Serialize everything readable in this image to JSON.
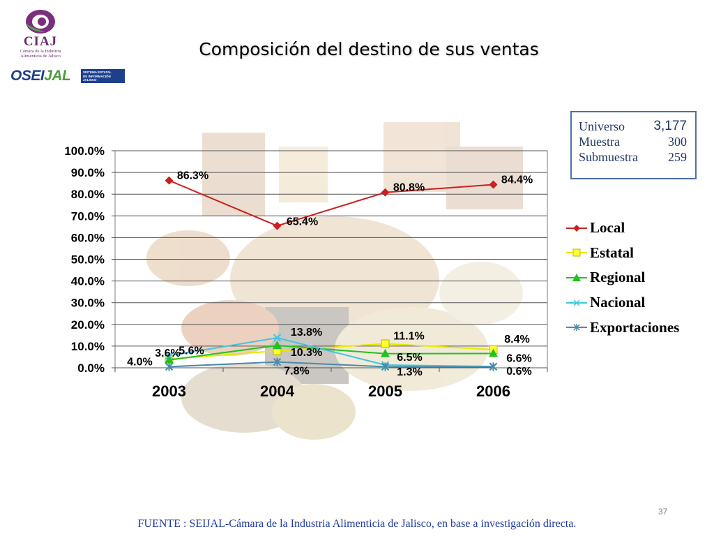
{
  "logos": {
    "ciaj_name": "CIAJ",
    "ciaj_subtitle_1": "Cámara de la Industria",
    "ciaj_subtitle_2": "Alimenticia de Jalisco",
    "oseijal_head": "OSEI",
    "oseijal_tail": "JAL",
    "oseijal_box_1": "SISTEMA ESTATAL",
    "oseijal_box_2": "DE INFORMACIÓN",
    "oseijal_box_3": "JALISCO"
  },
  "title": "Composición del destino de sus ventas",
  "universe_box": {
    "rows": [
      {
        "label": "Universo",
        "value": "3,177"
      },
      {
        "label": "Muestra",
        "value": "300"
      },
      {
        "label": "Submuestra",
        "value": "259"
      }
    ]
  },
  "chart_data": {
    "type": "line",
    "categories": [
      "2003",
      "2004",
      "2005",
      "2006"
    ],
    "y_ticks": [
      "100.0%",
      "90.0%",
      "80.0%",
      "70.0%",
      "60.0%",
      "50.0%",
      "40.0%",
      "30.0%",
      "20.0%",
      "10.0%",
      "0.0%"
    ],
    "ylim": [
      0,
      100
    ],
    "grid": true,
    "legend_position": "right",
    "series": [
      {
        "name": "Local",
        "values": [
          86.3,
          65.4,
          80.8,
          84.4
        ],
        "color": "#cc1f1f",
        "marker": "diamond"
      },
      {
        "name": "Estatal",
        "values": [
          4.0,
          7.8,
          11.1,
          8.4
        ],
        "color": "#e8e800",
        "marker": "square"
      },
      {
        "name": "Regional",
        "values": [
          3.6,
          10.3,
          6.5,
          6.6
        ],
        "color": "#22c21f",
        "marker": "triangle"
      },
      {
        "name": "Nacional",
        "values": [
          5.6,
          13.8,
          1.3,
          0.6
        ],
        "color": "#3fc7dc",
        "marker": "x"
      },
      {
        "name": "Exportaciones",
        "values": [
          0.5,
          2.7,
          0.5,
          0.5
        ],
        "color": "#4b8aa8",
        "marker": "star"
      }
    ],
    "data_labels": [
      {
        "text": "86.3%",
        "x": "2003",
        "y": 86.3
      },
      {
        "text": "65.4%",
        "x": "2004",
        "y": 65.4
      },
      {
        "text": "80.8%",
        "x": "2005",
        "y": 80.8
      },
      {
        "text": "84.4%",
        "x": "2006",
        "y": 84.4
      },
      {
        "text": "3.6%",
        "x": "2003",
        "y": 3.6
      },
      {
        "text": "4.0%",
        "x": "2003",
        "y": 4.0
      },
      {
        "text": "5.6%",
        "x": "2003",
        "y": 5.6
      },
      {
        "text": "13.8%",
        "x": "2004",
        "y": 13.8
      },
      {
        "text": "10.3%",
        "x": "2004",
        "y": 10.3
      },
      {
        "text": "7.8%",
        "x": "2004",
        "y": 7.8
      },
      {
        "text": "11.1%",
        "x": "2005",
        "y": 11.1
      },
      {
        "text": "6.5%",
        "x": "2005",
        "y": 6.5
      },
      {
        "text": "1.3%",
        "x": "2005",
        "y": 1.3
      },
      {
        "text": "8.4%",
        "x": "2006",
        "y": 8.4
      },
      {
        "text": "6.6%",
        "x": "2006",
        "y": 6.6
      },
      {
        "text": "0.6%",
        "x": "2006",
        "y": 0.6
      }
    ]
  },
  "source": "FUENTE : SEIJAL-Cámara de la Industria Alimenticia de Jalisco,  en base a investigación directa.",
  "page_number": "37"
}
